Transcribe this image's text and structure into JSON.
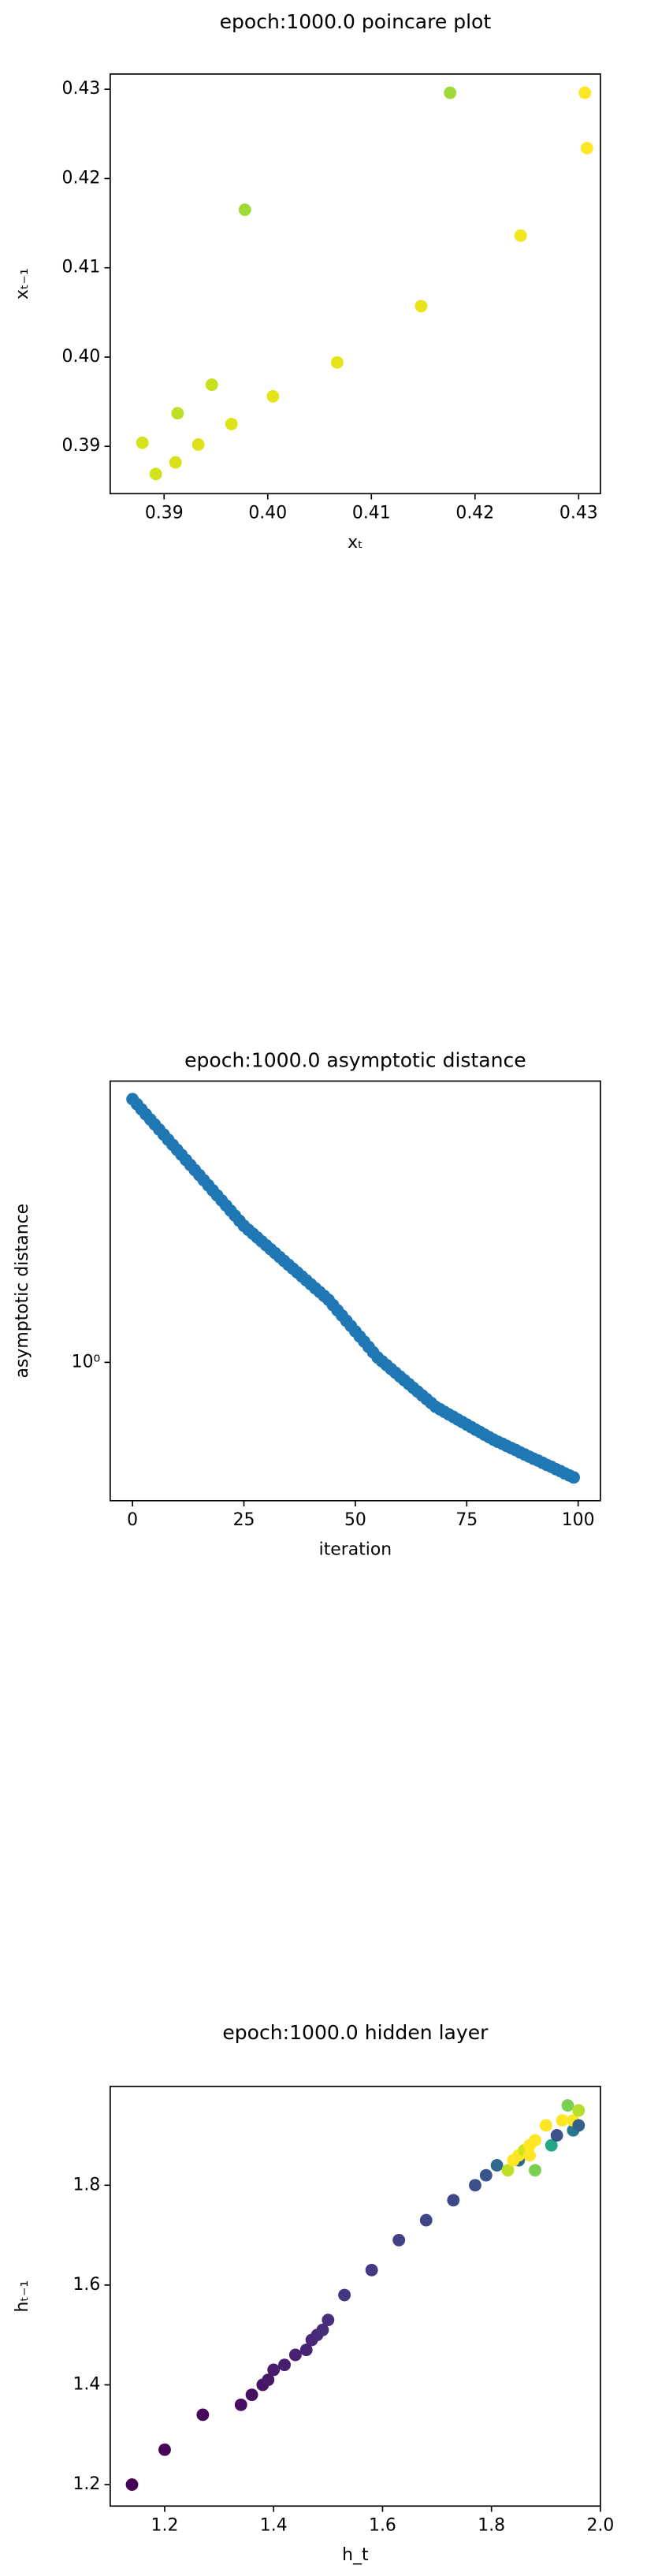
{
  "chart_data": [
    {
      "type": "scatter",
      "title": "epoch:1000.0 poincare plot",
      "xlabel": "xₜ",
      "ylabel": "xₜ₋₁",
      "x": [
        0.3879,
        0.3892,
        0.3911,
        0.3913,
        0.3933,
        0.3946,
        0.3965,
        0.3978,
        0.4005,
        0.4067,
        0.4148,
        0.4176,
        0.4244,
        0.4306,
        0.4308
      ],
      "values": [
        0.3904,
        0.3869,
        0.3882,
        0.3937,
        0.3902,
        0.3969,
        0.3925,
        0.4165,
        0.3956,
        0.3994,
        0.4057,
        0.4296,
        0.4136,
        0.4296,
        0.4234
      ],
      "colors": [
        "#d2e21b",
        "#d2e21b",
        "#d8e219",
        "#bddf26",
        "#dde318",
        "#c8e020",
        "#dde318",
        "#a0da39",
        "#e5e419",
        "#e5e419",
        "#e8e419",
        "#a0da39",
        "#f1e51d",
        "#fde725",
        "#fde725"
      ],
      "xlim": [
        0.3848,
        0.4321
      ],
      "ylim": [
        0.3847,
        0.4317
      ],
      "xticks": [
        0.39,
        {
          "value": 0.4,
          "label": "0.40"
        },
        0.41,
        0.42,
        0.43
      ],
      "yticks": [
        0.39,
        {
          "value": 0.4,
          "label": "0.40"
        },
        0.41,
        0.42,
        0.43
      ]
    },
    {
      "type": "scatter",
      "title": "epoch:1000.0 asymptotic distance",
      "xlabel": "iteration",
      "ylabel": "asymptotic distance",
      "yscale": "log",
      "color": "#1f77b4",
      "x": [
        0,
        1,
        2,
        3,
        4,
        5,
        6,
        7,
        8,
        9,
        10,
        11,
        12,
        13,
        14,
        15,
        16,
        17,
        18,
        19,
        20,
        21,
        22,
        23,
        24,
        25,
        26,
        27,
        28,
        29,
        30,
        31,
        32,
        33,
        34,
        35,
        36,
        37,
        38,
        39,
        40,
        41,
        42,
        43,
        44,
        45,
        46,
        47,
        48,
        49,
        50,
        51,
        52,
        53,
        54,
        55,
        56,
        57,
        58,
        59,
        60,
        61,
        62,
        63,
        64,
        65,
        66,
        67,
        68,
        69,
        70,
        71,
        72,
        73,
        74,
        75,
        76,
        77,
        78,
        79,
        80,
        81,
        82,
        83,
        84,
        85,
        86,
        87,
        88,
        89,
        90,
        91,
        92,
        93,
        94,
        95,
        96,
        97,
        98,
        99
      ],
      "values": [
        4.365,
        4.244,
        4.125,
        4.009,
        3.897,
        3.788,
        3.683,
        3.58,
        3.479,
        3.382,
        3.288,
        3.196,
        3.106,
        3.019,
        2.935,
        2.853,
        2.773,
        2.696,
        2.62,
        2.547,
        2.476,
        2.407,
        2.339,
        2.274,
        2.21,
        2.148,
        2.101,
        2.056,
        2.012,
        1.968,
        1.926,
        1.884,
        1.844,
        1.804,
        1.765,
        1.727,
        1.69,
        1.654,
        1.618,
        1.583,
        1.549,
        1.515,
        1.483,
        1.451,
        1.419,
        1.378,
        1.338,
        1.3,
        1.262,
        1.226,
        1.19,
        1.156,
        1.123,
        1.09,
        1.058,
        1.028,
        1.006,
        0.985,
        0.964,
        0.944,
        0.924,
        0.905,
        0.886,
        0.867,
        0.849,
        0.831,
        0.814,
        0.797,
        0.78,
        0.769,
        0.758,
        0.747,
        0.737,
        0.726,
        0.716,
        0.706,
        0.696,
        0.686,
        0.677,
        0.667,
        0.658,
        0.649,
        0.641,
        0.634,
        0.626,
        0.619,
        0.612,
        0.604,
        0.597,
        0.59,
        0.583,
        0.577,
        0.57,
        0.563,
        0.557,
        0.55,
        0.544,
        0.537,
        0.531,
        0.525
      ],
      "xlim": [
        -5,
        105
      ],
      "ylim": [
        0.461,
        4.83
      ],
      "xticks": [
        0,
        25,
        50,
        75,
        100
      ],
      "yticks": [
        {
          "value": 1,
          "label": "10⁰"
        }
      ]
    },
    {
      "type": "scatter",
      "title": "epoch:1000.0 hidden layer",
      "xlabel": "h_t",
      "ylabel": "hₜ₋₁",
      "x": [
        1.14,
        1.2,
        1.27,
        1.34,
        1.36,
        1.38,
        1.39,
        1.4,
        1.42,
        1.44,
        1.46,
        1.47,
        1.48,
        1.49,
        1.5,
        1.53,
        1.58,
        1.63,
        1.68,
        1.73,
        1.77,
        1.79,
        1.81,
        1.83,
        1.85,
        1.84,
        1.85,
        1.86,
        1.87,
        1.87,
        1.88,
        1.88,
        1.9,
        1.91,
        1.92,
        1.93,
        1.94,
        1.95,
        1.95,
        1.96,
        1.96
      ],
      "values": [
        1.2,
        1.27,
        1.34,
        1.36,
        1.38,
        1.4,
        1.41,
        1.43,
        1.44,
        1.46,
        1.47,
        1.49,
        1.5,
        1.51,
        1.53,
        1.58,
        1.63,
        1.69,
        1.73,
        1.77,
        1.8,
        1.82,
        1.84,
        1.83,
        1.85,
        1.85,
        1.86,
        1.87,
        1.88,
        1.86,
        1.83,
        1.89,
        1.92,
        1.88,
        1.9,
        1.93,
        1.96,
        1.91,
        1.93,
        1.95,
        1.92
      ],
      "colors": [
        "#440154",
        "#450559",
        "#46085c",
        "#470d60",
        "#471063",
        "#481467",
        "#48186a",
        "#481b6d",
        "#481f70",
        "#482173",
        "#482475",
        "#472777",
        "#472a7a",
        "#472c7a",
        "#46307e",
        "#453781",
        "#443a83",
        "#424086",
        "#404688",
        "#3e4989",
        "#3c4f8a",
        "#3a548c",
        "#31688e",
        "#bddf26",
        "#31688e",
        "#fde725",
        "#fde725",
        "#d2e21b",
        "#fde725",
        "#fde725",
        "#7ad151",
        "#fde725",
        "#fde725",
        "#22a884",
        "#3b528b",
        "#fde725",
        "#7ad151",
        "#2a788e",
        "#fde725",
        "#b5de2b",
        "#355f8d"
      ],
      "xlim": [
        1.1,
        2.0
      ],
      "ylim": [
        1.157,
        1.998
      ],
      "xticks": [
        1.2,
        1.4,
        1.6,
        1.8,
        {
          "value": 2,
          "label": "2.0"
        }
      ],
      "yticks": [
        1.2,
        1.4,
        1.6,
        1.8
      ]
    }
  ]
}
